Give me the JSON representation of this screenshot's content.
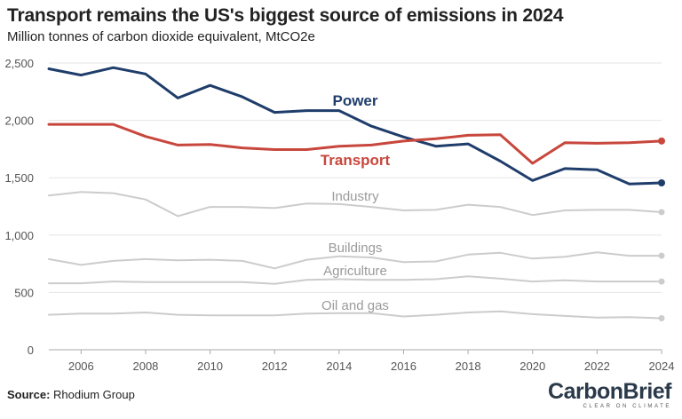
{
  "header": {
    "title": "Transport remains the US's biggest source of emissions in 2024",
    "subtitle": "Million tonnes of carbon dioxide equivalent, MtCO2e"
  },
  "footer": {
    "source_label": "Source:",
    "source_text": "Rhodium Group",
    "logo_carbon": "Carbon",
    "logo_brief": "Brief",
    "logo_tagline": "CLEAR ON CLIMATE"
  },
  "colors": {
    "power": "#1f3d6b",
    "transport": "#c8473d",
    "muted": "#cccccc",
    "grid": "#e6e6e6",
    "axis": "#555555"
  },
  "chart_data": {
    "type": "line",
    "title": "Transport remains the US's biggest source of emissions in 2024",
    "subtitle": "Million tonnes of carbon dioxide equivalent, MtCO2e",
    "xlabel": "",
    "ylabel": "",
    "xlim": [
      2005,
      2024
    ],
    "ylim": [
      0,
      2500
    ],
    "yticks": [
      0,
      500,
      1000,
      1500,
      2000,
      2500
    ],
    "ytick_labels": [
      "0",
      "500",
      "1,000",
      "1,500",
      "2,000",
      "2,500"
    ],
    "xticks": [
      2006,
      2008,
      2010,
      2012,
      2014,
      2016,
      2018,
      2020,
      2022,
      2024
    ],
    "xtick_labels": [
      "2006",
      "2008",
      "2010",
      "2012",
      "2014",
      "2016",
      "2018",
      "2020",
      "2022",
      "2024"
    ],
    "grid": true,
    "x": [
      2005,
      2006,
      2007,
      2008,
      2009,
      2010,
      2011,
      2012,
      2013,
      2014,
      2015,
      2016,
      2017,
      2018,
      2019,
      2020,
      2021,
      2022,
      2023,
      2024
    ],
    "series": [
      {
        "name": "Power",
        "color": "#1f3d6b",
        "emphasis": true,
        "values": [
          2450,
          2395,
          2460,
          2405,
          2195,
          2305,
          2205,
          2070,
          2085,
          2085,
          1950,
          1855,
          1775,
          1795,
          1645,
          1475,
          1580,
          1570,
          1445,
          1455
        ]
      },
      {
        "name": "Transport",
        "color": "#c8473d",
        "emphasis": true,
        "values": [
          1965,
          1965,
          1965,
          1860,
          1785,
          1790,
          1760,
          1745,
          1745,
          1775,
          1785,
          1820,
          1840,
          1870,
          1875,
          1625,
          1805,
          1800,
          1805,
          1820
        ]
      },
      {
        "name": "Industry",
        "color": "#cccccc",
        "emphasis": false,
        "values": [
          1345,
          1375,
          1365,
          1310,
          1165,
          1245,
          1245,
          1235,
          1275,
          1270,
          1245,
          1215,
          1220,
          1265,
          1245,
          1175,
          1215,
          1220,
          1220,
          1200
        ]
      },
      {
        "name": "Buildings",
        "color": "#cccccc",
        "emphasis": false,
        "values": [
          790,
          740,
          775,
          790,
          780,
          785,
          775,
          710,
          785,
          815,
          805,
          765,
          770,
          830,
          845,
          795,
          810,
          850,
          820,
          820
        ]
      },
      {
        "name": "Agriculture",
        "color": "#cccccc",
        "emphasis": false,
        "values": [
          580,
          580,
          595,
          590,
          590,
          590,
          590,
          575,
          610,
          615,
          610,
          610,
          615,
          640,
          620,
          595,
          605,
          595,
          595,
          595
        ]
      },
      {
        "name": "Oil and gas",
        "color": "#cccccc",
        "emphasis": false,
        "values": [
          305,
          315,
          315,
          325,
          305,
          300,
          300,
          300,
          315,
          320,
          320,
          290,
          305,
          325,
          335,
          310,
          295,
          280,
          285,
          275
        ]
      }
    ]
  }
}
